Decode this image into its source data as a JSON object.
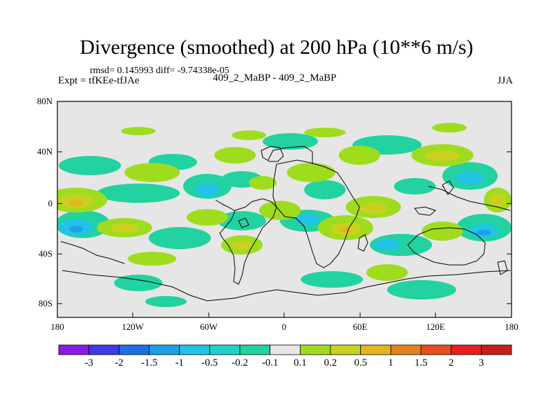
{
  "title": "Divergence (smoothed) at 200 hPa (10**6 m/s)",
  "stats_line": "rmsd= 0.145993 diff= -9.74338e-05",
  "experiment": "Expt = tfKEe-tfJAe",
  "case_label": "409_2_MaBP - 409_2_MaBP",
  "season": "JJA",
  "lat_ticks": [
    "80N",
    "40N",
    "0",
    "40S",
    "80S"
  ],
  "lon_ticks": [
    "180",
    "120W",
    "60W",
    "0",
    "60E",
    "120E",
    "180"
  ],
  "colorbar": {
    "labels": [
      "-3",
      "-2",
      "-1.5",
      "-1",
      "-0.5",
      "-0.2",
      "-0.1",
      "0.1",
      "0.2",
      "0.5",
      "1",
      "1.5",
      "2",
      "3"
    ],
    "colors": [
      "#8a1ae6",
      "#3c3ce6",
      "#1e6ee6",
      "#1ea0e6",
      "#22c3e6",
      "#1ed2c8",
      "#22d2a0",
      "#e6e6e6",
      "#a0dc1e",
      "#c8d21e",
      "#e6b41e",
      "#e6821e",
      "#e6501e",
      "#e61e1e",
      "#c81e1e"
    ]
  },
  "map_data": {
    "lon_range": [
      -180,
      180
    ],
    "lat_range": [
      -90,
      90
    ],
    "projection": "cylindrical equidistant",
    "background_color": "#e6e6e6"
  }
}
